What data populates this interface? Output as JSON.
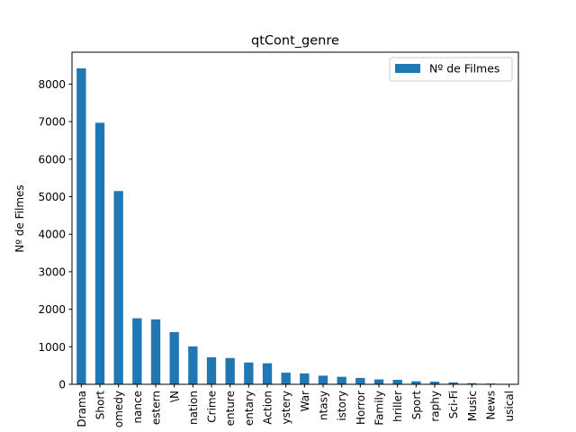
{
  "chart_data": {
    "type": "bar",
    "title": "qtCont_genre",
    "xlabel": "",
    "ylabel": "Nº de Filmes",
    "ylim": [
      0,
      8850
    ],
    "yticks": [
      0,
      1000,
      2000,
      3000,
      4000,
      5000,
      6000,
      7000,
      8000
    ],
    "categories": [
      "Drama",
      "Short",
      "Comedy",
      "Romance",
      "Western",
      "\\N",
      "Animation",
      "Crime",
      "Adventure",
      "Documentary",
      "Action",
      "Mystery",
      "War",
      "Fantasy",
      "History",
      "Horror",
      "Family",
      "Thriller",
      "Sport",
      "Biography",
      "Sci-Fi",
      "Music",
      "News",
      "Musical"
    ],
    "tick_labels_visible": [
      "Drama",
      "Short",
      "omedy",
      "nance",
      "estern",
      "\\N",
      "nation",
      "Crime",
      "enture",
      "entary",
      "Action",
      "ystery",
      "War",
      "ntasy",
      "istory",
      "Horror",
      "Family",
      "hriller",
      "Sport",
      "raphy",
      "Sci-Fi",
      "Music",
      "News",
      "usical"
    ],
    "series": [
      {
        "name": "Nº de Filmes",
        "color": "#1f77b4",
        "values": [
          8420,
          6970,
          5150,
          1760,
          1730,
          1390,
          1010,
          720,
          700,
          580,
          560,
          310,
          290,
          230,
          200,
          170,
          130,
          120,
          80,
          70,
          50,
          30,
          20,
          10
        ]
      }
    ],
    "legend": {
      "position": "upper right"
    },
    "grid": false
  }
}
